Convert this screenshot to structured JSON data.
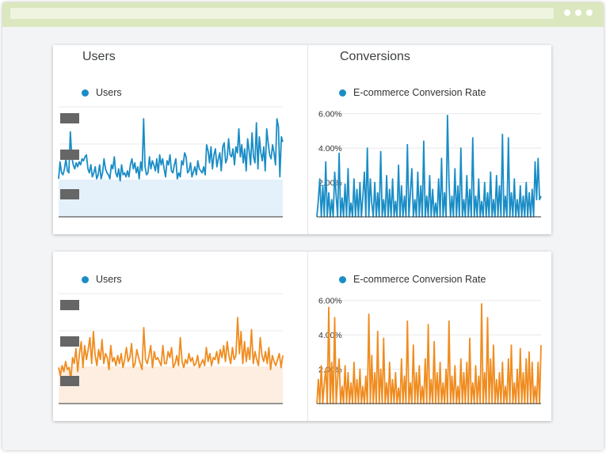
{
  "colors": {
    "blue": "#1a8dc6",
    "orange": "#f08c1f",
    "blue_fill": "#e4f1fb",
    "orange_fill": "#fdeee1"
  },
  "cards": [
    {
      "left": {
        "title": "Users",
        "legend": "Users",
        "color": "blue",
        "fill": "blue_fill",
        "y_tick_labels": [
          "",
          "",
          ""
        ],
        "chart_data": {
          "type": "area",
          "series": [
            {
              "name": "Users",
              "values": [
                38,
                55,
                44,
                42,
                48,
                58,
                46,
                44,
                85,
                60,
                52,
                48,
                54,
                50,
                55,
                52,
                58,
                56,
                60,
                62,
                48,
                44,
                52,
                40,
                44,
                50,
                38,
                42,
                52,
                38,
                44,
                58,
                48,
                44,
                42,
                38,
                52,
                48,
                60,
                44,
                40,
                48,
                36,
                52,
                42,
                44,
                40,
                46,
                40,
                52,
                58,
                48,
                54,
                44,
                50,
                38,
                55,
                46,
                98,
                50,
                42,
                44,
                60,
                48,
                56,
                52,
                46,
                58,
                44,
                62,
                52,
                58,
                48,
                40,
                56,
                52,
                62,
                46,
                44,
                52,
                58,
                38,
                44,
                40,
                56,
                52,
                64,
                60,
                44,
                46,
                54,
                40,
                45,
                50,
                42,
                56,
                48,
                46,
                44,
                50,
                42,
                72,
                66,
                54,
                70,
                48,
                62,
                68,
                50,
                58,
                64,
                46,
                70,
                74,
                54,
                58,
                78,
                62,
                60,
                68,
                52,
                70,
                64,
                88,
                60,
                72,
                54,
                68,
                46,
                78,
                66,
                52,
                84,
                60,
                54,
                94,
                48,
                80,
                64,
                56,
                70,
                46,
                88,
                74,
                62,
                58,
                72,
                64,
                52,
                98,
                90,
                40,
                80,
                75
              ]
            }
          ],
          "ylim": [
            0,
            110
          ],
          "y_tick_labels": [
            "",
            "",
            ""
          ]
        }
      },
      "right": {
        "title": "Conversions",
        "legend": "E-commerce Conversion Rate",
        "color": "blue",
        "chart_data": {
          "type": "line",
          "series": [
            {
              "name": "E-commerce Conversion Rate",
              "values": [
                0,
                1.0,
                2.2,
                0,
                1.8,
                0,
                3.2,
                0,
                1.4,
                0,
                1.0,
                0,
                2.6,
                1.2,
                0,
                3.7,
                0,
                1.1,
                0,
                1.9,
                0,
                2.8,
                0,
                0.8,
                0,
                2.2,
                0,
                1.6,
                0,
                2.0,
                0,
                1.2,
                2.6,
                0,
                4.0,
                0,
                2.2,
                0.8,
                0,
                2.0,
                0,
                1.4,
                0,
                3.8,
                0,
                1.0,
                0,
                2.4,
                0,
                1.6,
                0,
                2.2,
                0,
                0.9,
                0,
                3.0,
                0,
                1.8,
                0,
                1.2,
                0,
                4.2,
                0,
                1.4,
                2.8,
                0,
                1.0,
                0,
                2.6,
                0,
                1.8,
                0,
                4.4,
                0,
                1.2,
                0,
                2.4,
                0,
                1.6,
                0,
                0.8,
                0,
                2.2,
                0,
                3.4,
                0,
                1.4,
                0,
                5.9,
                2.0,
                0,
                1.2,
                0,
                2.8,
                0,
                1.8,
                0,
                4.0,
                0,
                1.0,
                0,
                2.4,
                0,
                1.6,
                0,
                4.6,
                0,
                1.2,
                0,
                2.2,
                0,
                0.9,
                0,
                2.0,
                0,
                1.4,
                0,
                2.6,
                0,
                1.0,
                0,
                2.4,
                0,
                1.8,
                0,
                4.8,
                0,
                1.2,
                0,
                4.6,
                0,
                1.4,
                0,
                2.2,
                0,
                1.0,
                0,
                1.8,
                0,
                1.2,
                0,
                2.0,
                0,
                1.4,
                0,
                1.6,
                0,
                3.2,
                1.0,
                3.4,
                1.0,
                1.2
              ]
            }
          ],
          "ylim": [
            0,
            6.4
          ],
          "y_ticks": [
            2,
            4,
            6
          ],
          "y_tick_labels": [
            "2.00%",
            "4.00%",
            "6.00%"
          ]
        }
      }
    },
    {
      "left": {
        "title": "",
        "legend": "Users",
        "color": "orange",
        "fill": "orange_fill",
        "chart_data": {
          "type": "area",
          "series": [
            {
              "name": "Users",
              "values": [
                36,
                28,
                38,
                32,
                42,
                34,
                36,
                24,
                46,
                40,
                55,
                32,
                50,
                62,
                36,
                58,
                44,
                54,
                66,
                40,
                72,
                48,
                38,
                54,
                44,
                64,
                40,
                50,
                46,
                34,
                58,
                42,
                46,
                38,
                48,
                40,
                50,
                36,
                44,
                56,
                42,
                46,
                60,
                36,
                40,
                54,
                46,
                40,
                34,
                76,
                44,
                40,
                48,
                58,
                36,
                52,
                44,
                46,
                42,
                38,
                58,
                40,
                40,
                52,
                46,
                56,
                36,
                40,
                48,
                38,
                66,
                42,
                36,
                44,
                40,
                50,
                42,
                46,
                38,
                40,
                48,
                36,
                40,
                44,
                38,
                56,
                42,
                50,
                38,
                46,
                44,
                52,
                40,
                54,
                46,
                58,
                42,
                62,
                48,
                40,
                56,
                44,
                48,
                86,
                50,
                72,
                40,
                62,
                42,
                56,
                44,
                74,
                40,
                52,
                44,
                38,
                66,
                48,
                42,
                52,
                40,
                56,
                34,
                48,
                42,
                38,
                44,
                50,
                36,
                48
              ]
            }
          ],
          "ylim": [
            0,
            110
          ],
          "y_tick_labels": [
            "",
            "",
            ""
          ]
        }
      },
      "right": {
        "title": "",
        "legend": "E-commerce Conversion Rate",
        "color": "orange",
        "chart_data": {
          "type": "line",
          "series": [
            {
              "name": "E-commerce Conversion Rate",
              "values": [
                0,
                1.4,
                0,
                2.2,
                0,
                1.2,
                2.0,
                0,
                5.6,
                0,
                2.4,
                0,
                5.0,
                0,
                1.4,
                2.6,
                0,
                1.0,
                0,
                2.2,
                0,
                1.8,
                0,
                1.2,
                0,
                2.4,
                0,
                1.4,
                0,
                2.0,
                0,
                1.0,
                0,
                1.6,
                0,
                5.2,
                0,
                2.8,
                0,
                1.8,
                0,
                4.2,
                0,
                2.0,
                0,
                3.8,
                0,
                1.2,
                0,
                2.4,
                0,
                1.4,
                0,
                1.8,
                0,
                0.9,
                0,
                2.6,
                0,
                1.6,
                0,
                4.8,
                0,
                1.2,
                0,
                3.4,
                0,
                1.8,
                0,
                2.2,
                0,
                1.0,
                0,
                2.6,
                0,
                4.6,
                0,
                1.4,
                0,
                3.6,
                0,
                1.8,
                0,
                2.4,
                0,
                1.2,
                0,
                2.0,
                0,
                4.8,
                0,
                1.6,
                0,
                2.2,
                0,
                1.0,
                0,
                2.6,
                0,
                1.8,
                0,
                2.4,
                0,
                3.8,
                0,
                1.2,
                0,
                2.2,
                0,
                1.6,
                0,
                5.8,
                0,
                1.8,
                0,
                5.0,
                0,
                2.6,
                0,
                3.4,
                0,
                1.4,
                0,
                1.8,
                0,
                2.4,
                0,
                1.0,
                0,
                2.6,
                0,
                3.4,
                0,
                1.2,
                0,
                2.0,
                0,
                3.2,
                0,
                1.8,
                0,
                2.6,
                0,
                3.0,
                0,
                2.4,
                0,
                1.0,
                0,
                2.4,
                0,
                3.4
              ]
            }
          ],
          "ylim": [
            0,
            6.4
          ],
          "y_ticks": [
            2,
            4,
            6
          ],
          "y_tick_labels": [
            "2.00%",
            "4.00%",
            "6.00%"
          ]
        }
      }
    }
  ]
}
